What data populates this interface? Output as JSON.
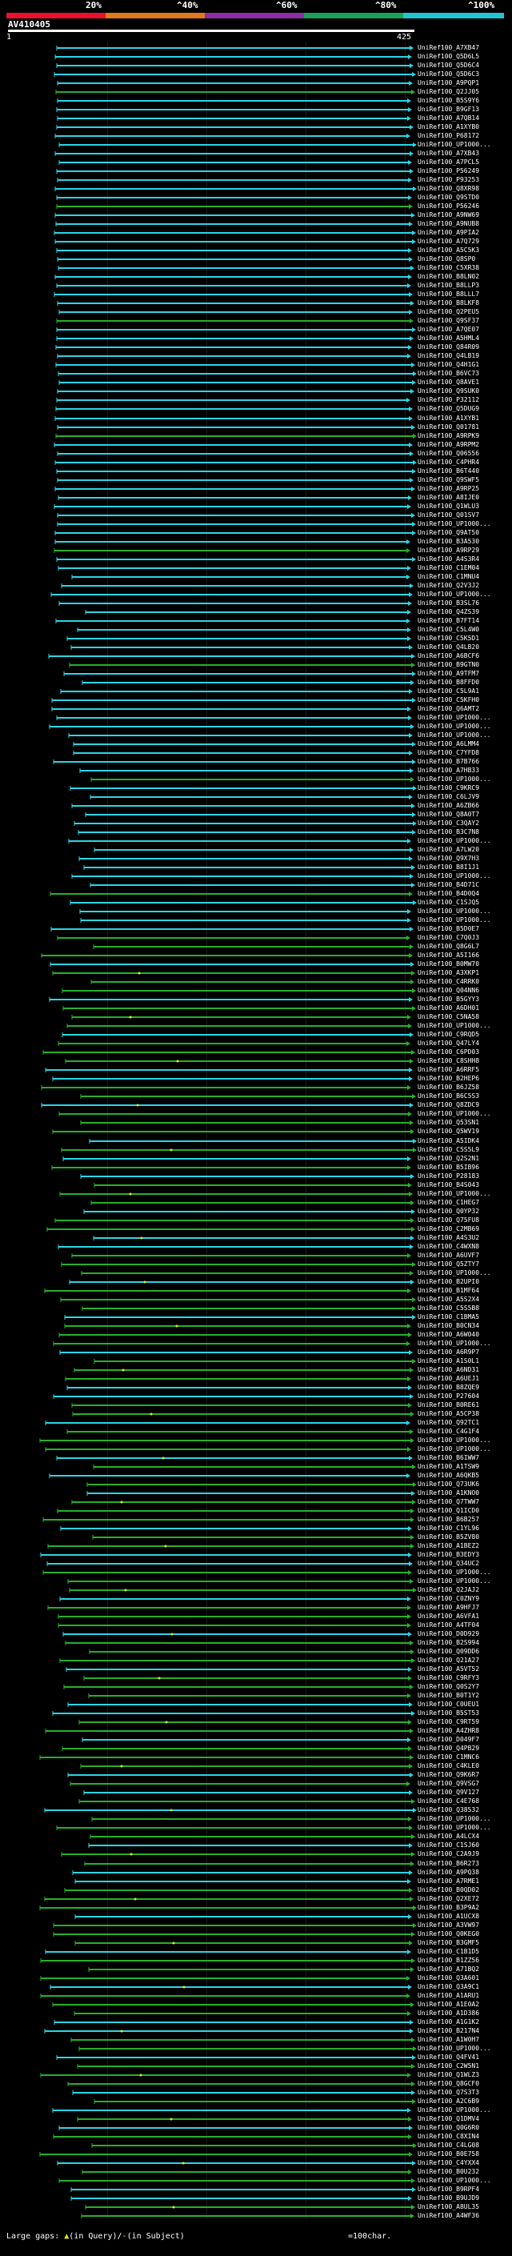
{
  "scale": {
    "labels": [
      "20%",
      "^40%",
      "^60%",
      "^80%",
      "^100%"
    ],
    "colors": [
      "#e8102a",
      "#e07a1a",
      "#8b2fa3",
      "#1aa05a",
      "#22c4d0"
    ]
  },
  "query": {
    "name": "AV410405",
    "start": "1",
    "end": "425"
  },
  "legend": {
    "text": "Large gaps: ",
    "in_query": "(in Query)",
    "sep": "/",
    "in_subject": "(in Subject)",
    "scale_note": "=100char."
  },
  "colors": {
    "cyan": "#2ad6e6",
    "green": "#27b02a",
    "yellow": "#e8e81a"
  },
  "hits": [
    "UniRef100_A7XB47",
    "UniRef100_Q5D6L5",
    "UniRef100_Q5D6C4",
    "UniRef100_Q5D6C3",
    "UniRef100_A9PQP1",
    "UniRef100_Q2JJ05",
    "UniRef100_B5S9Y6",
    "UniRef100_B9GF13",
    "UniRef100_A7QB14",
    "UniRef100_A1XYB0",
    "UniRef100_P68172",
    "UniRef100_UP1000...",
    "UniRef100_A7XB43",
    "UniRef100_A7PCL5",
    "UniRef100_P56249",
    "UniRef100_P93253",
    "UniRef100_Q8XR98",
    "UniRef100_Q9STD0",
    "UniRef100_P56246",
    "UniRef100_A9NW69",
    "UniRef100_A9NUB8",
    "UniRef100_A9PIA2",
    "UniRef100_A7Q729",
    "UniRef100_A5C5K3",
    "UniRef100_Q8SP0",
    "UniRef100_C5XR38",
    "UniRef100_B8LN02",
    "UniRef100_B8LLP3",
    "UniRef100_B8LLL7",
    "UniRef100_B8LKF8",
    "UniRef100_Q2PEU5",
    "UniRef100_Q9SF37",
    "UniRef100_A7QE07",
    "UniRef100_A5HML4",
    "UniRef100_Q84R09",
    "UniRef100_Q4LB19",
    "UniRef100_Q4H1G1",
    "UniRef100_B6VC73",
    "UniRef100_Q8AVE1",
    "UniRef100_Q9SUK0",
    "UniRef100_P32112",
    "UniRef100_Q5DUG9",
    "UniRef100_A1XYB1",
    "UniRef100_Q01781",
    "UniRef100_A9RPK9",
    "UniRef100_A9RPM2",
    "UniRef100_Q06556",
    "UniRef100_C4PHR4",
    "UniRef100_B6T440",
    "UniRef100_Q9SWF5",
    "UniRef100_A9RP25",
    "UniRef100_A8IJE0",
    "UniRef100_Q1WLU3",
    "UniRef100_Q01SV7",
    "UniRef100_UP1000...",
    "UniRef100_Q9AT50",
    "UniRef100_B3A530",
    "UniRef100_A9RP29",
    "UniRef100_A4S3R4",
    "UniRef100_C1EM04",
    "UniRef100_C1MNU4",
    "UniRef100_Q2V3J2",
    "UniRef100_UP1000...",
    "UniRef100_B3SL76",
    "UniRef100_Q4ZS39",
    "UniRef100_B7FT14",
    "UniRef100_C5L4W0",
    "UniRef100_C5K5D1",
    "UniRef100_Q4LB20",
    "UniRef100_A6BCF6",
    "UniRef100_B9GTN0",
    "UniRef100_A9TFM7",
    "UniRef100_B8FFD0",
    "UniRef100_C5L9A1",
    "UniRef100_C5KFH0",
    "UniRef100_Q6AMT2",
    "UniRef100_UP1000...",
    "UniRef100_UP1000...",
    "UniRef100_UP1000...",
    "UniRef100_A6LMM4",
    "UniRef100_C7YFD8",
    "UniRef100_B7B766",
    "UniRef100_A7HB33",
    "UniRef100_UP1000...",
    "UniRef100_C9KRC9",
    "UniRef100_C6LJV9",
    "UniRef100_A6ZB66",
    "UniRef100_Q8A0T7",
    "UniRef100_C3QAY2",
    "UniRef100_B3C7N8",
    "UniRef100_UP1000...",
    "UniRef100_A7LW20",
    "UniRef100_Q9X7H3",
    "UniRef100_B8I1J1",
    "UniRef100_UP1000...",
    "UniRef100_B4D71C",
    "UniRef100_B4D0Q4",
    "UniRef100_C1SJQ5",
    "UniRef100_UP1000...",
    "UniRef100_UP1000...",
    "UniRef100_B5D0E7",
    "UniRef100_C7Q0J3",
    "UniRef100_Q8G6L7",
    "UniRef100_A5I166",
    "UniRef100_B0MW70",
    "UniRef100_A3XKP1",
    "UniRef100_C4RRK0",
    "UniRef100_Q04NN6",
    "UniRef100_B5GYY3",
    "UniRef100_A6DH01",
    "UniRef100_C5NA58",
    "UniRef100_UP1000...",
    "UniRef100_C9RQD5",
    "UniRef100_Q47LY4",
    "UniRef100_C6PD03",
    "UniRef100_C8SHH8",
    "UniRef100_A6RRF5",
    "UniRef100_B2HEP6",
    "UniRef100_B6JZ58",
    "UniRef100_B6C5S3",
    "UniRef100_Q8ZDC9",
    "UniRef100_UP1000...",
    "UniRef100_Q53SN1",
    "UniRef100_Q5WV19",
    "UniRef100_A5IDK4",
    "UniRef100_C5S5L9",
    "UniRef100_Q2S2N1",
    "UniRef100_B5IB96",
    "UniRef100_P28183",
    "UniRef100_B4S043",
    "UniRef100_UP1000...",
    "UniRef100_C1HEG7",
    "UniRef100_Q0YP32",
    "UniRef100_Q75FU8",
    "UniRef100_C2MB69",
    "UniRef100_A4S3U2",
    "UniRef100_C4WXN8",
    "UniRef100_A6UVF7",
    "UniRef100_Q5ZTY7",
    "UniRef100_UP1000...",
    "UniRef100_B2UPI0",
    "UniRef100_B1MF64",
    "UniRef100_A5S2X4",
    "UniRef100_C5S5B8",
    "UniRef100_C1BMA5",
    "UniRef100_B0CN34",
    "UniRef100_A6W040",
    "UniRef100_UP1000...",
    "UniRef100_A6R9P7",
    "UniRef100_A1S0L1",
    "UniRef100_A6ND31",
    "UniRef100_A6UEJ1",
    "UniRef100_B8ZQE9",
    "UniRef100_P27604",
    "UniRef100_B0RE61",
    "UniRef100_A5CP38",
    "UniRef100_Q92TC1",
    "UniRef100_C4G1F4",
    "UniRef100_UP1000...",
    "UniRef100_UP1000...",
    "UniRef100_B6IWW7",
    "UniRef100_A1TSW9",
    "UniRef100_A6QKB5",
    "UniRef100_Q73UK6",
    "UniRef100_A1KNO0",
    "UniRef100_Q7TWW7",
    "UniRef100_Q1ICD0",
    "UniRef100_B6B257",
    "UniRef100_C1YL96",
    "UniRef100_B5ZV80",
    "UniRef100_A1BEZ2",
    "UniRef100_B3EDY3",
    "UniRef100_Q34UC2",
    "UniRef100_UP1000...",
    "UniRef100_UP1000...",
    "UniRef100_Q2JAJ2",
    "UniRef100_C0ZNY9",
    "UniRef100_A9HFJ7",
    "UniRef100_A6VFA1",
    "UniRef100_A4TF04",
    "UniRef100_D0D929",
    "UniRef100_B2S994",
    "UniRef100_Q09DD6",
    "UniRef100_Q21A27",
    "UniRef100_A5VT52",
    "UniRef100_C9RFY3",
    "UniRef100_Q0S2Y7",
    "UniRef100_B0T1Y2",
    "UniRef100_C0UEU1",
    "UniRef100_B5ST53",
    "UniRef100_C9RT59",
    "UniRef100_A4ZHR8",
    "UniRef100_D049F7",
    "UniRef100_Q4PB29",
    "UniRef100_C1MNC6",
    "UniRef100_C4KLE0",
    "UniRef100_Q9K6R7",
    "UniRef100_Q9VSG7",
    "UniRef100_Q9V127",
    "UniRef100_C4E768",
    "UniRef100_Q38532",
    "UniRef100_UP1000...",
    "UniRef100_UP1000...",
    "UniRef100_A4LCX4",
    "UniRef100_C1SJ60",
    "UniRef100_C2A9J9",
    "UniRef100_B6R273",
    "UniRef100_A9PQ38",
    "UniRef100_A7RME1",
    "UniRef100_B0QD02",
    "UniRef100_Q2XE72",
    "UniRef100_B3P9A2",
    "UniRef100_A1UCX8",
    "UniRef100_A3VW97",
    "UniRef100_Q0KEG0",
    "UniRef100_B3GMF5",
    "UniRef100_C1B1D5",
    "UniRef100_B1ZZ56",
    "UniRef100_A71BQ2",
    "UniRef100_Q3A601",
    "UniRef100_Q3A9C1",
    "UniRef100_A1ARU1",
    "UniRef100_A1E0A2",
    "UniRef100_A1D386",
    "UniRef100_A1G1K2",
    "UniRef100_B217N4",
    "UniRef100_A1W0H7",
    "UniRef100_UP1000...",
    "UniRef100_Q4FV41",
    "UniRef100_C2W5N1",
    "UniRef100_Q1WLZ3",
    "UniRef100_Q8GCF0",
    "UniRef100_Q7S3T3",
    "UniRef100_A2C6B9",
    "UniRef100_UP1000...",
    "UniRef100_Q1DMV4",
    "UniRef100_Q0G6R0",
    "UniRef100_C8XIN4",
    "UniRef100_C4LG08",
    "UniRef100_B0E758",
    "UniRef100_C4YXX4",
    "UniRef100_B0U232",
    "UniRef100_UP1000...",
    "UniRef100_B9RPF4",
    "UniRef100_B9UJD9",
    "UniRef100_A8UL35",
    "UniRef100_A4WF36"
  ]
}
